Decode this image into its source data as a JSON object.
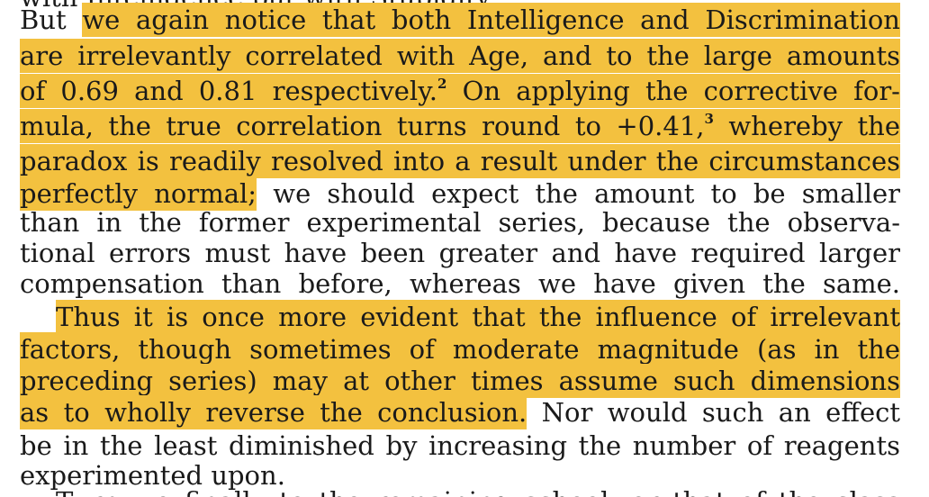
{
  "lines": {
    "l0": {
      "text": "with Intelligence but with Stupidity."
    },
    "l1": {
      "pre": "But ",
      "hl": "we again notice that both Intelligence and Discrimination"
    },
    "l2": {
      "hl": "are irrelevantly correlated with Age, and to the large amounts"
    },
    "l3": {
      "hl": "of 0.69 and 0.81 respectively.",
      "sup": "2",
      "hl2": " On applying the corrective for-"
    },
    "l4": {
      "hl": "mula, the true correlation turns round to +0.41,",
      "sup": "3",
      "hl2": " whereby the"
    },
    "l5": {
      "hl": "paradox is readily resolved into a result under the circumstances"
    },
    "l6": {
      "hl": "perfectly normal;",
      "post": " we should expect the amount to be smaller"
    },
    "l7": {
      "text": "than in the former experimental series, because the observa-"
    },
    "l8": {
      "text": "tional errors must have been greater and have required larger"
    },
    "l9": {
      "text": "compensation than before, whereas we have given the same."
    },
    "l10": {
      "hl": "Thus it is once more evident that the influence of irrelevant"
    },
    "l11": {
      "hl": "factors, though sometimes of moderate magnitude (as in the"
    },
    "l12": {
      "hl": "preceding series) may at other times assume such dimensions"
    },
    "l13": {
      "hl": "as to wholly reverse the conclusion.",
      "post": " Nor would such an effect"
    },
    "l14": {
      "text": "be in the least diminished by increasing the number of reagents"
    },
    "l15": {
      "text": "experimented upon."
    },
    "l16": {
      "text": "Turn we finally to the remaining school, or that of the class"
    }
  },
  "colors": {
    "highlight": "#f3c13f",
    "text": "#1a1a1a",
    "background": "#ffffff"
  }
}
